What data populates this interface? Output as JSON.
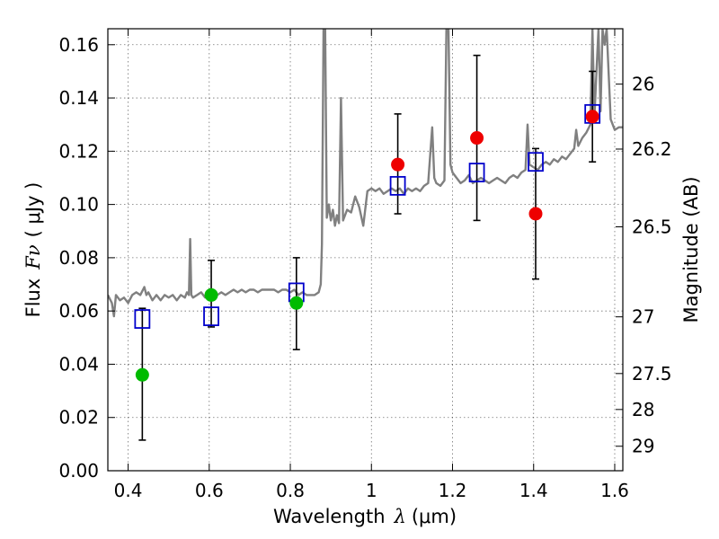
{
  "chart_data": {
    "type": "scatter",
    "xlabel_prefix": "Wavelength",
    "xlabel_symbol": "λ",
    "xlabel_unit": "(μm)",
    "ylabel_prefix": "Flux",
    "ylabel_symbol": "Fν",
    "ylabel_unit": "( μJy )",
    "ylabel_right": "Magnitude (AB)",
    "xlim": [
      0.35,
      1.62
    ],
    "ylim": [
      0.0,
      0.166
    ],
    "xticks": [
      0.4,
      0.6,
      0.8,
      1.0,
      1.2,
      1.4,
      1.6
    ],
    "xtick_labels": [
      "0.4",
      "0.6",
      "0.8",
      "1",
      "1.2",
      "1.4",
      "1.6"
    ],
    "yticks": [
      0.0,
      0.02,
      0.04,
      0.06,
      0.08,
      0.1,
      0.12,
      0.14,
      0.16
    ],
    "ytick_labels": [
      "0.00",
      "0.02",
      "0.04",
      "0.06",
      "0.08",
      "0.10",
      "0.12",
      "0.14",
      "0.16"
    ],
    "right_ticks": [
      {
        "label": "26",
        "flux": 0.1452
      },
      {
        "label": "26.2",
        "flux": 0.1208
      },
      {
        "label": "26.5",
        "flux": 0.0916
      },
      {
        "label": "27",
        "flux": 0.0578
      },
      {
        "label": "27.5",
        "flux": 0.0365
      },
      {
        "label": "28",
        "flux": 0.023
      },
      {
        "label": "29",
        "flux": 0.0092
      }
    ],
    "grid": true,
    "colors": {
      "spectrum": "#808080",
      "model_box": "#0000cc",
      "obs_green": "#00bb00",
      "obs_red": "#ee0000",
      "errorbar": "#000000"
    },
    "series": [
      {
        "name": "model spectrum",
        "style": "line",
        "points": [
          [
            0.35,
            0.066
          ],
          [
            0.36,
            0.063
          ],
          [
            0.365,
            0.058
          ],
          [
            0.37,
            0.066
          ],
          [
            0.38,
            0.064
          ],
          [
            0.39,
            0.065
          ],
          [
            0.4,
            0.063
          ],
          [
            0.41,
            0.066
          ],
          [
            0.42,
            0.067
          ],
          [
            0.43,
            0.066
          ],
          [
            0.44,
            0.069
          ],
          [
            0.445,
            0.066
          ],
          [
            0.45,
            0.067
          ],
          [
            0.46,
            0.064
          ],
          [
            0.47,
            0.066
          ],
          [
            0.48,
            0.064
          ],
          [
            0.49,
            0.066
          ],
          [
            0.5,
            0.065
          ],
          [
            0.51,
            0.066
          ],
          [
            0.52,
            0.064
          ],
          [
            0.53,
            0.066
          ],
          [
            0.54,
            0.065
          ],
          [
            0.545,
            0.067
          ],
          [
            0.55,
            0.066
          ],
          [
            0.553,
            0.087
          ],
          [
            0.556,
            0.066
          ],
          [
            0.56,
            0.065
          ],
          [
            0.57,
            0.066
          ],
          [
            0.58,
            0.067
          ],
          [
            0.59,
            0.065
          ],
          [
            0.6,
            0.066
          ],
          [
            0.61,
            0.067
          ],
          [
            0.62,
            0.066
          ],
          [
            0.63,
            0.067
          ],
          [
            0.64,
            0.066
          ],
          [
            0.65,
            0.067
          ],
          [
            0.66,
            0.068
          ],
          [
            0.67,
            0.067
          ],
          [
            0.68,
            0.068
          ],
          [
            0.69,
            0.067
          ],
          [
            0.7,
            0.068
          ],
          [
            0.71,
            0.068
          ],
          [
            0.72,
            0.067
          ],
          [
            0.73,
            0.068
          ],
          [
            0.74,
            0.068
          ],
          [
            0.75,
            0.068
          ],
          [
            0.76,
            0.068
          ],
          [
            0.77,
            0.067
          ],
          [
            0.78,
            0.068
          ],
          [
            0.79,
            0.068
          ],
          [
            0.8,
            0.067
          ],
          [
            0.81,
            0.068
          ],
          [
            0.82,
            0.066
          ],
          [
            0.83,
            0.067
          ],
          [
            0.84,
            0.066
          ],
          [
            0.85,
            0.066
          ],
          [
            0.86,
            0.066
          ],
          [
            0.87,
            0.067
          ],
          [
            0.875,
            0.07
          ],
          [
            0.878,
            0.085
          ],
          [
            0.882,
            0.166
          ],
          [
            0.886,
            0.166
          ],
          [
            0.89,
            0.095
          ],
          [
            0.895,
            0.1
          ],
          [
            0.9,
            0.094
          ],
          [
            0.905,
            0.098
          ],
          [
            0.91,
            0.092
          ],
          [
            0.915,
            0.096
          ],
          [
            0.92,
            0.093
          ],
          [
            0.925,
            0.14
          ],
          [
            0.93,
            0.094
          ],
          [
            0.94,
            0.098
          ],
          [
            0.95,
            0.097
          ],
          [
            0.96,
            0.103
          ],
          [
            0.97,
            0.099
          ],
          [
            0.98,
            0.092
          ],
          [
            0.99,
            0.105
          ],
          [
            1.0,
            0.106
          ],
          [
            1.01,
            0.105
          ],
          [
            1.02,
            0.106
          ],
          [
            1.03,
            0.104
          ],
          [
            1.04,
            0.105
          ],
          [
            1.05,
            0.106
          ],
          [
            1.06,
            0.105
          ],
          [
            1.07,
            0.106
          ],
          [
            1.08,
            0.104
          ],
          [
            1.09,
            0.106
          ],
          [
            1.1,
            0.105
          ],
          [
            1.11,
            0.106
          ],
          [
            1.12,
            0.105
          ],
          [
            1.13,
            0.107
          ],
          [
            1.14,
            0.108
          ],
          [
            1.15,
            0.129
          ],
          [
            1.155,
            0.11
          ],
          [
            1.16,
            0.108
          ],
          [
            1.17,
            0.107
          ],
          [
            1.18,
            0.109
          ],
          [
            1.185,
            0.166
          ],
          [
            1.19,
            0.166
          ],
          [
            1.195,
            0.115
          ],
          [
            1.2,
            0.112
          ],
          [
            1.21,
            0.11
          ],
          [
            1.22,
            0.108
          ],
          [
            1.23,
            0.109
          ],
          [
            1.24,
            0.111
          ],
          [
            1.25,
            0.108
          ],
          [
            1.26,
            0.109
          ],
          [
            1.27,
            0.11
          ],
          [
            1.28,
            0.109
          ],
          [
            1.29,
            0.108
          ],
          [
            1.3,
            0.109
          ],
          [
            1.31,
            0.11
          ],
          [
            1.32,
            0.109
          ],
          [
            1.33,
            0.108
          ],
          [
            1.34,
            0.11
          ],
          [
            1.35,
            0.111
          ],
          [
            1.36,
            0.11
          ],
          [
            1.37,
            0.112
          ],
          [
            1.38,
            0.113
          ],
          [
            1.385,
            0.13
          ],
          [
            1.39,
            0.115
          ],
          [
            1.4,
            0.114
          ],
          [
            1.41,
            0.113
          ],
          [
            1.42,
            0.115
          ],
          [
            1.43,
            0.116
          ],
          [
            1.44,
            0.115
          ],
          [
            1.45,
            0.117
          ],
          [
            1.46,
            0.116
          ],
          [
            1.47,
            0.118
          ],
          [
            1.48,
            0.117
          ],
          [
            1.49,
            0.119
          ],
          [
            1.5,
            0.121
          ],
          [
            1.505,
            0.128
          ],
          [
            1.51,
            0.122
          ],
          [
            1.52,
            0.125
          ],
          [
            1.53,
            0.127
          ],
          [
            1.54,
            0.13
          ],
          [
            1.545,
            0.166
          ],
          [
            1.55,
            0.133
          ],
          [
            1.555,
            0.15
          ],
          [
            1.56,
            0.166
          ],
          [
            1.565,
            0.135
          ],
          [
            1.57,
            0.166
          ],
          [
            1.575,
            0.16
          ],
          [
            1.58,
            0.166
          ],
          [
            1.59,
            0.132
          ],
          [
            1.6,
            0.128
          ],
          [
            1.61,
            0.129
          ],
          [
            1.62,
            0.129
          ]
        ]
      },
      {
        "name": "model photometry",
        "style": "open-square",
        "x": [
          0.435,
          0.605,
          0.815,
          1.065,
          1.26,
          1.405,
          1.545
        ],
        "y": [
          0.057,
          0.058,
          0.067,
          0.107,
          0.112,
          0.116,
          0.134
        ]
      },
      {
        "name": "observed (green)",
        "style": "filled-circle",
        "x": [
          0.435,
          0.605,
          0.815
        ],
        "y": [
          0.036,
          0.066,
          0.063
        ],
        "err_low": [
          0.0115,
          0.054,
          0.0455
        ],
        "err_high": [
          0.061,
          0.079,
          0.08
        ]
      },
      {
        "name": "observed (red)",
        "style": "filled-circle",
        "x": [
          1.065,
          1.26,
          1.405,
          1.545
        ],
        "y": [
          0.115,
          0.125,
          0.0965,
          0.133
        ],
        "err_low": [
          0.0965,
          0.094,
          0.072,
          0.116
        ],
        "err_high": [
          0.134,
          0.156,
          0.121,
          0.15
        ]
      }
    ]
  }
}
